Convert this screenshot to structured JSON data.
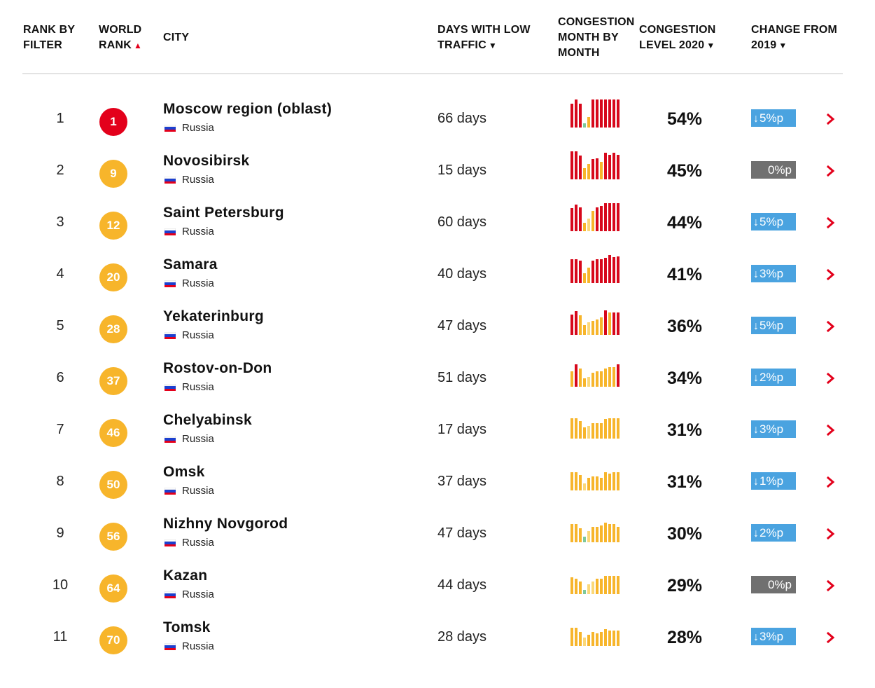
{
  "header": {
    "rank_by_filter": [
      "RANK BY",
      "FILTER"
    ],
    "world_rank": [
      "WORLD",
      "RANK"
    ],
    "city": "CITY",
    "days_low": [
      "DAYS WITH LOW",
      "TRAFFIC"
    ],
    "congestion_month": [
      "CONGESTION",
      "MONTH BY",
      "MONTH"
    ],
    "congestion_level": [
      "CONGESTION",
      "LEVEL 2020"
    ],
    "change_from": [
      "CHANGE FROM",
      "2019"
    ],
    "sort_up_icon": "triangle-up",
    "sort_down_icon": "triangle-down"
  },
  "colors": {
    "red": "#d7081b",
    "amber": "#f7b52b",
    "light_amber": "#fbd879",
    "green": "#7fc99a",
    "badge_red": "#e3001b",
    "badge_amber": "#f7b52b",
    "change_blue": "#4aa3e0",
    "change_grey": "#707070",
    "chevron_red": "#e3001b"
  },
  "rows": [
    {
      "rank": "1",
      "world_rank": "1",
      "city": "Moscow region (oblast)",
      "country": "Russia",
      "days": "66 days",
      "level": "54%",
      "change": "5%p",
      "change_dir": "down",
      "months": [
        {
          "v": 0.85,
          "c": "r"
        },
        {
          "v": 1.0,
          "c": "r"
        },
        {
          "v": 0.85,
          "c": "r"
        },
        {
          "v": 0.15,
          "c": "g"
        },
        {
          "v": 0.38,
          "c": "a"
        },
        {
          "v": 1.0,
          "c": "r"
        },
        {
          "v": 1.0,
          "c": "r"
        },
        {
          "v": 1.0,
          "c": "r"
        },
        {
          "v": 1.0,
          "c": "r"
        },
        {
          "v": 1.0,
          "c": "r"
        },
        {
          "v": 1.0,
          "c": "r"
        },
        {
          "v": 1.0,
          "c": "r"
        }
      ]
    },
    {
      "rank": "2",
      "world_rank": "9",
      "city": "Novosibirsk",
      "country": "Russia",
      "days": "15 days",
      "level": "45%",
      "change": "0%p",
      "change_dir": "none",
      "months": [
        {
          "v": 1.0,
          "c": "r"
        },
        {
          "v": 1.0,
          "c": "r"
        },
        {
          "v": 0.85,
          "c": "r"
        },
        {
          "v": 0.4,
          "c": "a"
        },
        {
          "v": 0.55,
          "c": "a"
        },
        {
          "v": 0.72,
          "c": "r"
        },
        {
          "v": 0.75,
          "c": "r"
        },
        {
          "v": 0.62,
          "c": "a"
        },
        {
          "v": 0.95,
          "c": "r"
        },
        {
          "v": 0.88,
          "c": "r"
        },
        {
          "v": 0.95,
          "c": "r"
        },
        {
          "v": 0.88,
          "c": "r"
        }
      ]
    },
    {
      "rank": "3",
      "world_rank": "12",
      "city": "Saint Petersburg",
      "country": "Russia",
      "days": "60 days",
      "level": "44%",
      "change": "5%p",
      "change_dir": "down",
      "months": [
        {
          "v": 0.82,
          "c": "r"
        },
        {
          "v": 0.95,
          "c": "r"
        },
        {
          "v": 0.85,
          "c": "r"
        },
        {
          "v": 0.3,
          "c": "a"
        },
        {
          "v": 0.45,
          "c": "l"
        },
        {
          "v": 0.72,
          "c": "a"
        },
        {
          "v": 0.85,
          "c": "r"
        },
        {
          "v": 0.9,
          "c": "r"
        },
        {
          "v": 1.0,
          "c": "r"
        },
        {
          "v": 1.0,
          "c": "r"
        },
        {
          "v": 1.0,
          "c": "r"
        },
        {
          "v": 1.0,
          "c": "r"
        }
      ]
    },
    {
      "rank": "4",
      "world_rank": "20",
      "city": "Samara",
      "country": "Russia",
      "days": "40 days",
      "level": "41%",
      "change": "3%p",
      "change_dir": "down",
      "months": [
        {
          "v": 0.85,
          "c": "r"
        },
        {
          "v": 0.85,
          "c": "r"
        },
        {
          "v": 0.8,
          "c": "r"
        },
        {
          "v": 0.35,
          "c": "a"
        },
        {
          "v": 0.55,
          "c": "a"
        },
        {
          "v": 0.8,
          "c": "r"
        },
        {
          "v": 0.85,
          "c": "r"
        },
        {
          "v": 0.85,
          "c": "r"
        },
        {
          "v": 0.9,
          "c": "r"
        },
        {
          "v": 1.0,
          "c": "r"
        },
        {
          "v": 0.92,
          "c": "r"
        },
        {
          "v": 0.95,
          "c": "r"
        }
      ]
    },
    {
      "rank": "5",
      "world_rank": "28",
      "city": "Yekaterinburg",
      "country": "Russia",
      "days": "47 days",
      "level": "36%",
      "change": "5%p",
      "change_dir": "down",
      "months": [
        {
          "v": 0.72,
          "c": "r"
        },
        {
          "v": 0.85,
          "c": "r"
        },
        {
          "v": 0.7,
          "c": "a"
        },
        {
          "v": 0.35,
          "c": "a"
        },
        {
          "v": 0.45,
          "c": "l"
        },
        {
          "v": 0.5,
          "c": "a"
        },
        {
          "v": 0.55,
          "c": "a"
        },
        {
          "v": 0.62,
          "c": "a"
        },
        {
          "v": 0.88,
          "c": "r"
        },
        {
          "v": 0.8,
          "c": "a"
        },
        {
          "v": 0.8,
          "c": "r"
        },
        {
          "v": 0.8,
          "c": "r"
        }
      ]
    },
    {
      "rank": "6",
      "world_rank": "37",
      "city": "Rostov-on-Don",
      "country": "Russia",
      "days": "51 days",
      "level": "34%",
      "change": "2%p",
      "change_dir": "down",
      "months": [
        {
          "v": 0.55,
          "c": "a"
        },
        {
          "v": 0.8,
          "c": "r"
        },
        {
          "v": 0.65,
          "c": "a"
        },
        {
          "v": 0.3,
          "c": "a"
        },
        {
          "v": 0.35,
          "c": "l"
        },
        {
          "v": 0.5,
          "c": "a"
        },
        {
          "v": 0.55,
          "c": "a"
        },
        {
          "v": 0.55,
          "c": "a"
        },
        {
          "v": 0.65,
          "c": "a"
        },
        {
          "v": 0.7,
          "c": "a"
        },
        {
          "v": 0.7,
          "c": "a"
        },
        {
          "v": 0.8,
          "c": "r"
        }
      ]
    },
    {
      "rank": "7",
      "world_rank": "46",
      "city": "Chelyabinsk",
      "country": "Russia",
      "days": "17 days",
      "level": "31%",
      "change": "3%p",
      "change_dir": "down",
      "months": [
        {
          "v": 0.72,
          "c": "a"
        },
        {
          "v": 0.72,
          "c": "a"
        },
        {
          "v": 0.62,
          "c": "a"
        },
        {
          "v": 0.4,
          "c": "a"
        },
        {
          "v": 0.45,
          "c": "l"
        },
        {
          "v": 0.55,
          "c": "a"
        },
        {
          "v": 0.55,
          "c": "a"
        },
        {
          "v": 0.55,
          "c": "a"
        },
        {
          "v": 0.7,
          "c": "a"
        },
        {
          "v": 0.72,
          "c": "a"
        },
        {
          "v": 0.72,
          "c": "a"
        },
        {
          "v": 0.72,
          "c": "a"
        }
      ]
    },
    {
      "rank": "8",
      "world_rank": "50",
      "city": "Omsk",
      "country": "Russia",
      "days": "37 days",
      "level": "31%",
      "change": "1%p",
      "change_dir": "down",
      "months": [
        {
          "v": 0.65,
          "c": "a"
        },
        {
          "v": 0.65,
          "c": "a"
        },
        {
          "v": 0.55,
          "c": "a"
        },
        {
          "v": 0.25,
          "c": "l"
        },
        {
          "v": 0.45,
          "c": "a"
        },
        {
          "v": 0.5,
          "c": "a"
        },
        {
          "v": 0.5,
          "c": "a"
        },
        {
          "v": 0.45,
          "c": "a"
        },
        {
          "v": 0.65,
          "c": "a"
        },
        {
          "v": 0.6,
          "c": "a"
        },
        {
          "v": 0.65,
          "c": "a"
        },
        {
          "v": 0.65,
          "c": "a"
        }
      ]
    },
    {
      "rank": "9",
      "world_rank": "56",
      "city": "Nizhny Novgorod",
      "country": "Russia",
      "days": "47 days",
      "level": "30%",
      "change": "2%p",
      "change_dir": "down",
      "months": [
        {
          "v": 0.65,
          "c": "a"
        },
        {
          "v": 0.65,
          "c": "a"
        },
        {
          "v": 0.5,
          "c": "a"
        },
        {
          "v": 0.2,
          "c": "g"
        },
        {
          "v": 0.4,
          "c": "l"
        },
        {
          "v": 0.55,
          "c": "a"
        },
        {
          "v": 0.55,
          "c": "a"
        },
        {
          "v": 0.6,
          "c": "a"
        },
        {
          "v": 0.7,
          "c": "a"
        },
        {
          "v": 0.65,
          "c": "a"
        },
        {
          "v": 0.65,
          "c": "a"
        },
        {
          "v": 0.55,
          "c": "a"
        }
      ]
    },
    {
      "rank": "10",
      "world_rank": "64",
      "city": "Kazan",
      "country": "Russia",
      "days": "44 days",
      "level": "29%",
      "change": "0%p",
      "change_dir": "none",
      "months": [
        {
          "v": 0.6,
          "c": "a"
        },
        {
          "v": 0.55,
          "c": "a"
        },
        {
          "v": 0.45,
          "c": "a"
        },
        {
          "v": 0.15,
          "c": "g"
        },
        {
          "v": 0.35,
          "c": "l"
        },
        {
          "v": 0.45,
          "c": "l"
        },
        {
          "v": 0.55,
          "c": "a"
        },
        {
          "v": 0.55,
          "c": "a"
        },
        {
          "v": 0.65,
          "c": "a"
        },
        {
          "v": 0.65,
          "c": "a"
        },
        {
          "v": 0.65,
          "c": "a"
        },
        {
          "v": 0.65,
          "c": "a"
        }
      ]
    },
    {
      "rank": "11",
      "world_rank": "70",
      "city": "Tomsk",
      "country": "Russia",
      "days": "28 days",
      "level": "28%",
      "change": "3%p",
      "change_dir": "down",
      "months": [
        {
          "v": 0.65,
          "c": "a"
        },
        {
          "v": 0.65,
          "c": "a"
        },
        {
          "v": 0.5,
          "c": "a"
        },
        {
          "v": 0.3,
          "c": "l"
        },
        {
          "v": 0.4,
          "c": "a"
        },
        {
          "v": 0.5,
          "c": "a"
        },
        {
          "v": 0.45,
          "c": "a"
        },
        {
          "v": 0.5,
          "c": "a"
        },
        {
          "v": 0.6,
          "c": "a"
        },
        {
          "v": 0.55,
          "c": "a"
        },
        {
          "v": 0.55,
          "c": "a"
        },
        {
          "v": 0.55,
          "c": "a"
        }
      ]
    }
  ]
}
